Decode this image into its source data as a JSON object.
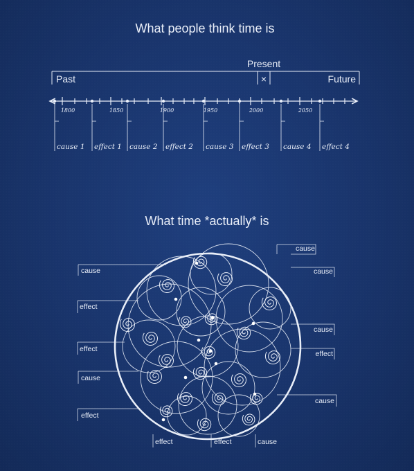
{
  "top": {
    "title": "What people think time is",
    "present_label": "Present",
    "present_marker": "×",
    "past_label": "Past",
    "future_label": "Future",
    "years": [
      "1800",
      "1850",
      "1900",
      "1950",
      "2000",
      "2050"
    ],
    "events": [
      "cause 1",
      "effect 1",
      "cause 2",
      "effect 2",
      "cause 3",
      "effect 3",
      "cause 4",
      "effect 4"
    ]
  },
  "bottom": {
    "title": "What time *actually* is",
    "labels": {
      "cause_top_right": "cause",
      "cause_right_1": "cause",
      "cause_left_1": "cause",
      "effect_left_1": "effect",
      "cause_right_2": "cause",
      "effect_right": "effect",
      "effect_left_2": "effect",
      "cause_left_2": "cause",
      "cause_right_3": "cause",
      "effect_left_3": "effect",
      "effect_bottom_1": "effect",
      "effect_bottom_2": "effect",
      "cause_bottom": "cause"
    }
  },
  "colors": {
    "background": "#19346b",
    "ink": "#e9eef8"
  }
}
